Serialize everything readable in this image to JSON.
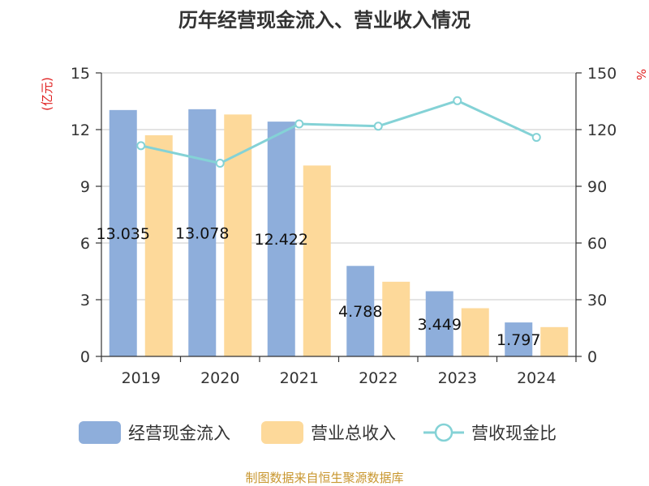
{
  "chart_data": {
    "type": "bar",
    "title": "历年经营现金流入、营业收入情况",
    "categories": [
      "2019",
      "2020",
      "2021",
      "2022",
      "2023",
      "2024"
    ],
    "y_left": {
      "unit_label": "(亿元)",
      "ylim": [
        0,
        15
      ],
      "ticks": [
        "0",
        "3",
        "6",
        "9",
        "12",
        "15"
      ]
    },
    "y_right": {
      "unit_label": "%",
      "ylim": [
        0,
        150
      ],
      "ticks": [
        "0",
        "30",
        "60",
        "90",
        "120",
        "150"
      ]
    },
    "series": [
      {
        "name": "经营现金流入",
        "type": "bar",
        "axis": "left",
        "color": "#8eaedb",
        "values": [
          13.035,
          13.078,
          12.422,
          4.788,
          3.449,
          1.797
        ],
        "labels": [
          "13.035",
          "13.078",
          "12.422",
          "4.788",
          "3.449",
          "1.797"
        ]
      },
      {
        "name": "营业总收入",
        "type": "bar",
        "axis": "left",
        "color": "#fdd99a",
        "values": [
          11.7,
          12.8,
          10.1,
          3.95,
          2.55,
          1.55
        ]
      },
      {
        "name": "营收现金比",
        "type": "line",
        "axis": "right",
        "color": "#84d2d6",
        "values": [
          111.5,
          102.2,
          123.0,
          121.8,
          135.3,
          115.9
        ]
      }
    ],
    "grid": true,
    "legend_position": "bottom"
  },
  "source_text": "制图数据来自恒生聚源数据库"
}
